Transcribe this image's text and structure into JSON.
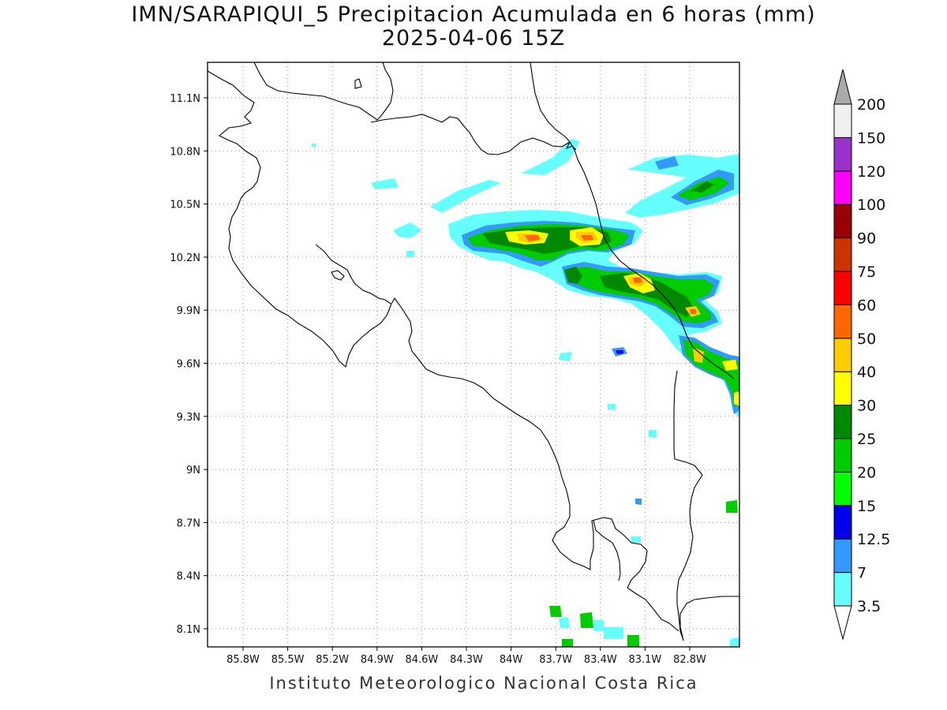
{
  "header": {
    "title": "IMN/SARAPIQUI_5 Precipitacion Acumulada en 6 horas (mm)",
    "subtitle": "2025-04-06 15Z"
  },
  "footer": {
    "credit": "Instituto Meteorologico Nacional Costa Rica"
  },
  "axes": {
    "lon_labels": [
      "85.8W",
      "85.5W",
      "85.2W",
      "84.9W",
      "84.6W",
      "84.3W",
      "84W",
      "83.7W",
      "83.4W",
      "83.1W",
      "82.8W"
    ],
    "lat_labels": [
      "11.1N",
      "10.8N",
      "10.5N",
      "10.2N",
      "9.9N",
      "9.6N",
      "9.3N",
      "9N",
      "8.7N",
      "8.4N",
      "8.1N"
    ]
  },
  "colorbar": {
    "labels": [
      "3.5",
      "7",
      "12.5",
      "15",
      "20",
      "25",
      "30",
      "40",
      "50",
      "60",
      "75",
      "90",
      "100",
      "120",
      "150",
      "200"
    ],
    "colors": [
      "#66ffff",
      "#3399ff",
      "#0000ee",
      "#00ff00",
      "#00cc00",
      "#008800",
      "#ffff00",
      "#ffcc00",
      "#ff6600",
      "#ff0000",
      "#cc3300",
      "#990000",
      "#ff00ff",
      "#9933cc",
      "#f0f0f0"
    ],
    "lower_arrow_color": "#ffffff",
    "upper_arrow_color": "#aaaaaa"
  },
  "map": {
    "grid": true,
    "grid_style": "dotted",
    "frame_color": "#000000"
  }
}
